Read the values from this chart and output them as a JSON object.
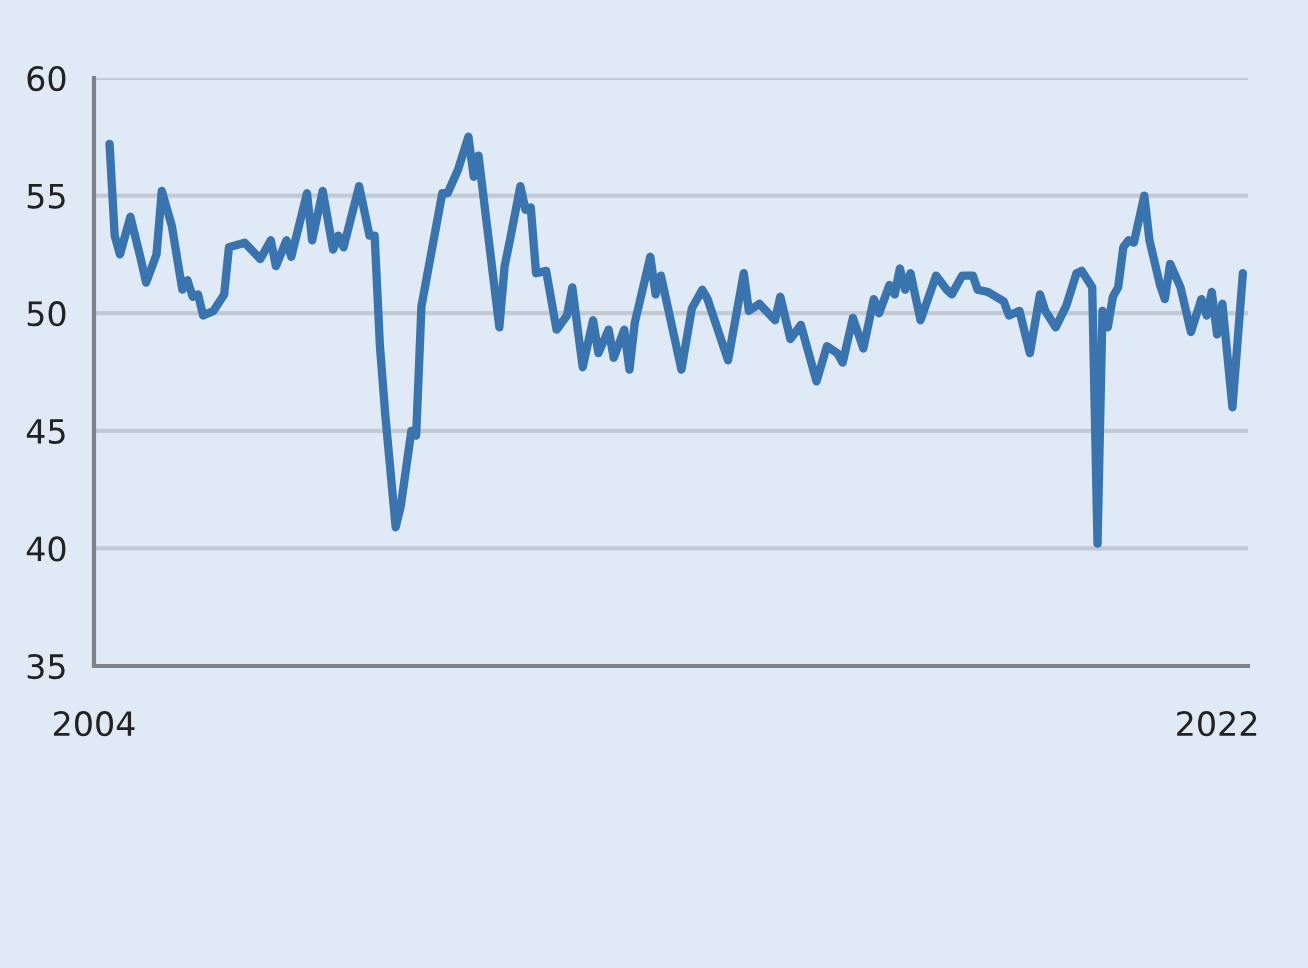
{
  "chart_data": {
    "type": "line",
    "x": [
      "2004-04",
      "2004-05",
      "2004-06",
      "2004-08",
      "2004-10",
      "2004-11",
      "2005-01",
      "2005-02",
      "2005-04",
      "2005-06",
      "2005-07",
      "2005-08",
      "2005-09",
      "2005-10",
      "2005-12",
      "2006-02",
      "2006-03",
      "2006-06",
      "2006-09",
      "2006-11",
      "2006-12",
      "2007-02",
      "2007-03",
      "2007-06",
      "2007-07",
      "2007-09",
      "2007-11",
      "2007-12",
      "2008-01",
      "2008-04",
      "2008-06",
      "2008-07",
      "2008-08",
      "2008-09",
      "2008-11",
      "2008-12",
      "2009-02",
      "2009-03",
      "2009-04",
      "2009-08",
      "2009-09",
      "2009-11",
      "2010-01",
      "2010-02",
      "2010-03",
      "2010-07",
      "2010-08",
      "2010-09",
      "2010-11",
      "2010-12",
      "2011-01",
      "2011-02",
      "2011-04",
      "2011-06",
      "2011-08",
      "2011-09",
      "2011-11",
      "2011-12",
      "2012-01",
      "2012-02",
      "2012-04",
      "2012-05",
      "2012-07",
      "2012-08",
      "2012-09",
      "2012-12",
      "2013-01",
      "2013-02",
      "2013-06",
      "2013-08",
      "2013-10",
      "2013-11",
      "2014-03",
      "2014-06",
      "2014-07",
      "2014-09",
      "2014-12",
      "2015-01",
      "2015-03",
      "2015-05",
      "2015-08",
      "2015-10",
      "2015-12",
      "2016-01",
      "2016-03",
      "2016-05",
      "2016-07",
      "2016-08",
      "2016-10",
      "2016-11",
      "2016-12",
      "2017-01",
      "2017-02",
      "2017-04",
      "2017-07",
      "2017-09",
      "2017-10",
      "2017-12",
      "2018-02",
      "2018-03",
      "2018-05",
      "2018-08",
      "2018-09",
      "2018-11",
      "2019-01",
      "2019-03",
      "2019-04",
      "2019-06",
      "2019-08",
      "2019-10",
      "2019-11",
      "2020-01",
      "2020-02",
      "2020-03",
      "2020-04",
      "2020-05",
      "2020-06",
      "2020-07",
      "2020-08",
      "2020-09",
      "2020-11",
      "2020-12",
      "2021-02",
      "2021-03",
      "2021-04",
      "2021-06",
      "2021-08",
      "2021-10",
      "2021-11",
      "2021-12",
      "2022-01",
      "2022-02",
      "2022-04",
      "2022-06"
    ],
    "values": [
      57.2,
      53.3,
      52.5,
      54.1,
      52.3,
      51.3,
      52.5,
      55.2,
      53.7,
      51.0,
      51.4,
      50.7,
      50.8,
      49.9,
      50.1,
      50.8,
      52.8,
      53.0,
      52.3,
      53.1,
      52.0,
      53.1,
      52.4,
      55.1,
      53.1,
      55.2,
      52.7,
      53.3,
      52.8,
      55.4,
      53.3,
      53.3,
      48.6,
      45.7,
      40.9,
      41.8,
      45.0,
      44.8,
      50.3,
      55.1,
      55.1,
      56.1,
      57.5,
      55.8,
      56.7,
      49.4,
      52.0,
      53.1,
      55.4,
      54.4,
      54.5,
      51.7,
      51.8,
      49.3,
      49.9,
      51.1,
      47.7,
      48.7,
      49.7,
      48.3,
      49.3,
      48.1,
      49.3,
      47.6,
      49.6,
      52.4,
      50.8,
      51.6,
      47.6,
      50.2,
      51.0,
      50.6,
      48.0,
      51.7,
      50.1,
      50.4,
      49.7,
      50.7,
      48.9,
      49.5,
      47.1,
      48.6,
      48.3,
      47.9,
      49.8,
      48.5,
      50.6,
      50.0,
      51.2,
      50.8,
      51.9,
      51.0,
      51.7,
      49.7,
      51.6,
      51.0,
      50.8,
      51.6,
      51.6,
      51.0,
      50.9,
      50.5,
      49.9,
      50.1,
      48.3,
      50.8,
      50.1,
      49.4,
      50.3,
      51.7,
      51.8,
      51.1,
      40.2,
      50.1,
      49.4,
      50.7,
      51.1,
      52.8,
      53.1,
      53.0,
      55.0,
      53.1,
      51.2,
      50.6,
      52.1,
      51.1,
      49.2,
      50.6,
      49.9,
      50.9,
      49.1,
      50.4,
      46.0,
      51.7
    ],
    "color": "#3a74ae",
    "xlim": [
      "2004-01",
      "2022-07"
    ],
    "xticks": [
      {
        "value": "2004-01",
        "label": "2004"
      },
      {
        "value": "2022-01",
        "label": "2022"
      }
    ],
    "ylim": [
      35,
      60
    ],
    "yticks": [
      35,
      40,
      45,
      50,
      55,
      60
    ],
    "grid": "y",
    "legend": false,
    "marker": "none",
    "line_style": "solid"
  }
}
